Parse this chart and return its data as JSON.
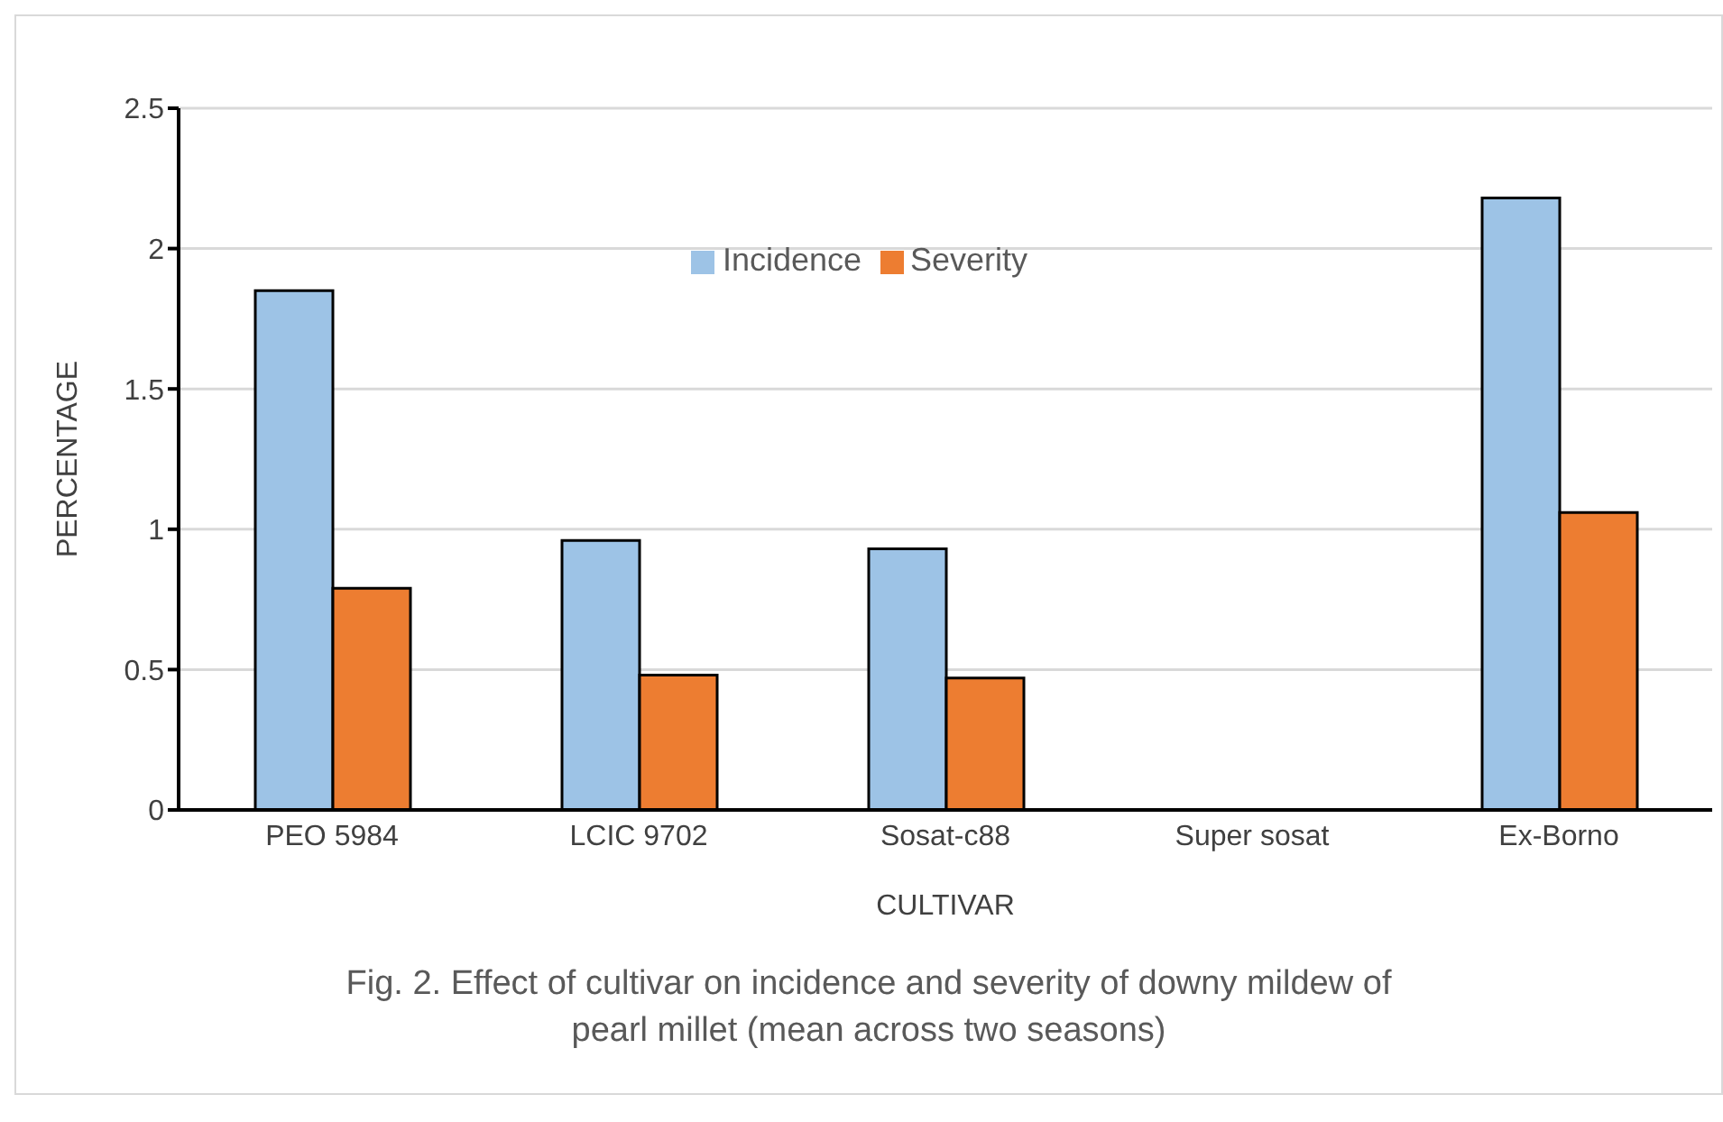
{
  "chart_data": {
    "type": "bar",
    "xlabel": "CULTIVAR",
    "ylabel": "PERCENTAGE",
    "categories": [
      "PEO 5984",
      "LCIC 9702",
      "Sosat-c88",
      "Super sosat",
      "Ex-Borno"
    ],
    "series": [
      {
        "name": "Incidence",
        "color": "#9dc3e6",
        "values": [
          1.85,
          0.96,
          0.93,
          0,
          2.18
        ]
      },
      {
        "name": "Severity",
        "color": "#ed7d31",
        "values": [
          0.79,
          0.48,
          0.47,
          0,
          1.06
        ]
      }
    ],
    "ylim": [
      0,
      2.5
    ],
    "yticks": [
      0,
      0.5,
      1,
      1.5,
      2,
      2.5
    ],
    "grid": "y",
    "legend": "top",
    "annotations": [
      "Fig. 2. Effect of cultivar on incidence and severity of downy mildew of pearl millet (mean across two seasons)"
    ]
  }
}
